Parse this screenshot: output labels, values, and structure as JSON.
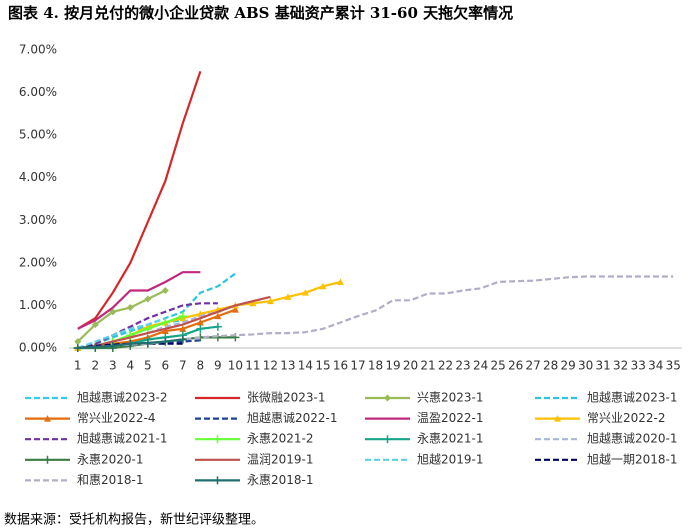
{
  "chart_data": {
    "type": "line",
    "title": "图表 4. 按月兑付的微小企业贷款 ABS 基础资产累计 31-60 天拖欠率情况",
    "source": "数据来源：受托机构报告，新世纪评级整理。",
    "categories": [
      "1",
      "2",
      "3",
      "4",
      "5",
      "6",
      "7",
      "8",
      "9",
      "10",
      "11",
      "12",
      "13",
      "14",
      "15",
      "16",
      "17",
      "18",
      "19",
      "20",
      "21",
      "22",
      "23",
      "24",
      "25",
      "26",
      "27",
      "28",
      "29",
      "30",
      "31",
      "32",
      "33",
      "34",
      "35"
    ],
    "ylim": [
      0,
      7
    ],
    "yticks": [
      {
        "value": 0,
        "label": "0.00%"
      },
      {
        "value": 1,
        "label": "1.00%"
      },
      {
        "value": 2,
        "label": "2.00%"
      },
      {
        "value": 3,
        "label": "3.00%"
      },
      {
        "value": 4,
        "label": "4.00%"
      },
      {
        "value": 5,
        "label": "5.00%"
      },
      {
        "value": 6,
        "label": "6.00%"
      },
      {
        "value": 7,
        "label": "7.00%"
      }
    ],
    "grid": false,
    "legend": "bottom",
    "series": [
      {
        "name": "旭越惠诚2023-2",
        "color": "#33ccee",
        "dash": true,
        "values": [
          0,
          0.1,
          0.25,
          0.4,
          0.5,
          0.6,
          0.65,
          null,
          null,
          null,
          null,
          null,
          null,
          null,
          null,
          null,
          null,
          null,
          null,
          null,
          null,
          null,
          null,
          null,
          null,
          null,
          null,
          null,
          null,
          null,
          null,
          null,
          null,
          null,
          null
        ]
      },
      {
        "name": "张微融2023-1",
        "color": "#d62728",
        "values": [
          0.45,
          0.7,
          1.3,
          2.0,
          2.96,
          3.92,
          5.28,
          6.5,
          null,
          null,
          null,
          null,
          null,
          null,
          null,
          null,
          null,
          null,
          null,
          null,
          null,
          null,
          null,
          null,
          null,
          null,
          null,
          null,
          null,
          null,
          null,
          null,
          null,
          null,
          null
        ]
      },
      {
        "name": "兴惠2023-1",
        "color": "#9bbb59",
        "marker": "diamond",
        "values": [
          0.15,
          0.55,
          0.85,
          0.95,
          1.15,
          1.35,
          null,
          null,
          null,
          null,
          null,
          null,
          null,
          null,
          null,
          null,
          null,
          null,
          null,
          null,
          null,
          null,
          null,
          null,
          null,
          null,
          null,
          null,
          null,
          null,
          null,
          null,
          null,
          null,
          null
        ]
      },
      {
        "name": "旭越惠诚2023-1",
        "color": "#2ec4e0",
        "dash": true,
        "values": [
          0,
          0.1,
          0.25,
          0.4,
          0.55,
          0.7,
          0.85,
          1.3,
          1.45,
          1.75,
          null,
          null,
          null,
          null,
          null,
          null,
          null,
          null,
          null,
          null,
          null,
          null,
          null,
          null,
          null,
          null,
          null,
          null,
          null,
          null,
          null,
          null,
          null,
          null,
          null
        ]
      },
      {
        "name": "常兴业2022-4",
        "color": "#e46c0a",
        "marker": "triangle",
        "values": [
          0,
          0.05,
          0.1,
          0.15,
          0.25,
          0.4,
          0.45,
          0.6,
          0.75,
          0.9,
          null,
          null,
          null,
          null,
          null,
          null,
          null,
          null,
          null,
          null,
          null,
          null,
          null,
          null,
          null,
          null,
          null,
          null,
          null,
          null,
          null,
          null,
          null,
          null,
          null
        ]
      },
      {
        "name": "旭越惠诚2022-1",
        "color": "#1f3f99",
        "dash": true,
        "values": [
          0,
          0.02,
          0.05,
          0.08,
          0.1,
          0.12,
          0.15,
          0.18,
          null,
          null,
          null,
          null,
          null,
          null,
          null,
          null,
          null,
          null,
          null,
          null,
          null,
          null,
          null,
          null,
          null,
          null,
          null,
          null,
          null,
          null,
          null,
          null,
          null,
          null,
          null
        ]
      },
      {
        "name": "温盈2022-1",
        "color": "#c0287e",
        "values": [
          0.45,
          0.65,
          0.95,
          1.35,
          1.35,
          1.55,
          1.78,
          1.78,
          null,
          null,
          null,
          null,
          null,
          null,
          null,
          null,
          null,
          null,
          null,
          null,
          null,
          null,
          null,
          null,
          null,
          null,
          null,
          null,
          null,
          null,
          null,
          null,
          null,
          null,
          null
        ]
      },
      {
        "name": "常兴业2022-2",
        "color": "#ffc000",
        "marker": "triangle",
        "values": [
          0,
          0.05,
          0.15,
          0.3,
          0.5,
          0.6,
          0.7,
          0.8,
          0.9,
          1.0,
          1.05,
          1.1,
          1.2,
          1.3,
          1.45,
          1.55,
          null,
          null,
          null,
          null,
          null,
          null,
          null,
          null,
          null,
          null,
          null,
          null,
          null,
          null,
          null,
          null,
          null,
          null,
          null
        ]
      },
      {
        "name": "旭越惠诚2021-1",
        "color": "#7030a0",
        "dash": true,
        "values": [
          0,
          0.1,
          0.3,
          0.5,
          0.7,
          0.85,
          1.0,
          1.05,
          1.05,
          null,
          null,
          null,
          null,
          null,
          null,
          null,
          null,
          null,
          null,
          null,
          null,
          null,
          null,
          null,
          null,
          null,
          null,
          null,
          null,
          null,
          null,
          null,
          null,
          null,
          null
        ]
      },
      {
        "name": "永惠2021-2",
        "color": "#66ff33",
        "marker": "plus",
        "values": [
          0,
          0.05,
          0.15,
          0.3,
          0.45,
          0.6,
          0.75,
          null,
          null,
          null,
          null,
          null,
          null,
          null,
          null,
          null,
          null,
          null,
          null,
          null,
          null,
          null,
          null,
          null,
          null,
          null,
          null,
          null,
          null,
          null,
          null,
          null,
          null,
          null,
          null
        ]
      },
      {
        "name": "永惠2021-1",
        "color": "#17a589",
        "marker": "plus",
        "values": [
          0,
          0,
          0.05,
          0.1,
          0.2,
          0.25,
          0.3,
          0.45,
          0.5,
          null,
          null,
          null,
          null,
          null,
          null,
          null,
          null,
          null,
          null,
          null,
          null,
          null,
          null,
          null,
          null,
          null,
          null,
          null,
          null,
          null,
          null,
          null,
          null,
          null,
          null
        ]
      },
      {
        "name": "旭越惠诚2020-1",
        "color": "#a6b8d9",
        "dash": true,
        "values": [
          0,
          0.05,
          0.15,
          0.25,
          0.35,
          0.5,
          0.6,
          0.75,
          0.85,
          1.0,
          1.1,
          null,
          null,
          null,
          null,
          null,
          null,
          null,
          null,
          null,
          null,
          null,
          null,
          null,
          null,
          null,
          null,
          null,
          null,
          null,
          null,
          null,
          null,
          null,
          null
        ]
      },
      {
        "name": "永惠2020-1",
        "color": "#3a7d44",
        "marker": "plus",
        "values": [
          0,
          0,
          0,
          0.05,
          0.1,
          0.15,
          0.2,
          0.25,
          0.25,
          0.25,
          null,
          null,
          null,
          null,
          null,
          null,
          null,
          null,
          null,
          null,
          null,
          null,
          null,
          null,
          null,
          null,
          null,
          null,
          null,
          null,
          null,
          null,
          null,
          null,
          null
        ]
      },
      {
        "name": "温润2019-1",
        "color": "#c0504d",
        "values": [
          0,
          0.05,
          0.15,
          0.25,
          0.35,
          0.45,
          0.55,
          0.7,
          0.85,
          1.0,
          1.1,
          1.2,
          null,
          null,
          null,
          null,
          null,
          null,
          null,
          null,
          null,
          null,
          null,
          null,
          null,
          null,
          null,
          null,
          null,
          null,
          null,
          null,
          null,
          null,
          null
        ]
      },
      {
        "name": "旭越2019-1",
        "color": "#5bd0e8",
        "dash": true,
        "values": [
          0,
          0.15,
          0.3,
          0.45,
          0.55,
          0.7,
          null,
          null,
          null,
          null,
          null,
          null,
          null,
          null,
          null,
          null,
          null,
          null,
          null,
          null,
          null,
          null,
          null,
          null,
          null,
          null,
          null,
          null,
          null,
          null,
          null,
          null,
          null,
          null,
          null
        ]
      },
      {
        "name": "旭越一期2018-1",
        "color": "#000066",
        "dash": true,
        "values": [
          0,
          0.05,
          0.08,
          0.1,
          0.1,
          0.1,
          0.1,
          null,
          null,
          null,
          null,
          null,
          null,
          null,
          null,
          null,
          null,
          null,
          null,
          null,
          null,
          null,
          null,
          null,
          null,
          null,
          null,
          null,
          null,
          null,
          null,
          null,
          null,
          null,
          null
        ]
      },
      {
        "name": "和惠2018-1",
        "color": "#b4acc8",
        "dash": true,
        "values": [
          0,
          0.02,
          0.05,
          0.08,
          0.1,
          0.15,
          0.2,
          0.25,
          0.28,
          0.3,
          0.32,
          0.35,
          0.35,
          0.37,
          0.45,
          0.6,
          0.75,
          0.88,
          1.12,
          1.12,
          1.28,
          1.28,
          1.35,
          1.4,
          1.55,
          1.57,
          1.58,
          1.62,
          1.66,
          1.68,
          1.68,
          1.68,
          1.68,
          1.68,
          1.68
        ]
      },
      {
        "name": "永惠2018-1",
        "color": "#1f6f6f",
        "marker": "plus",
        "values": [
          0,
          0.02,
          0.05,
          0.1,
          0.12,
          0.15,
          0.2,
          null,
          null,
          null,
          null,
          null,
          null,
          null,
          null,
          null,
          null,
          null,
          null,
          null,
          null,
          null,
          null,
          null,
          null,
          null,
          null,
          null,
          null,
          null,
          null,
          null,
          null,
          null,
          null
        ]
      }
    ]
  }
}
